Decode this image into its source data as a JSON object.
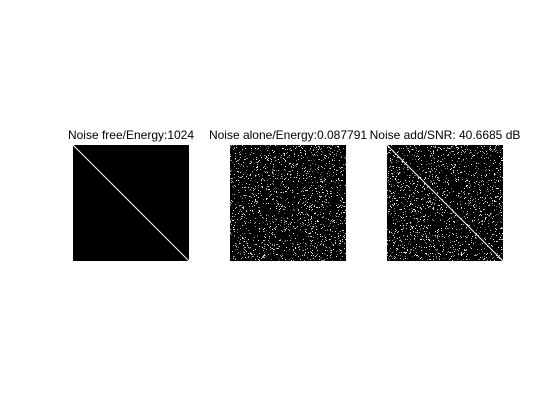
{
  "figure": {
    "background": "#ffffff",
    "panel_color": "#000000",
    "diagonal_color": "#ffffff",
    "noise_color": "#ffffff"
  },
  "chart_data": [
    {
      "type": "heatmap",
      "title": "Noise free/Energy:1024",
      "content": "identity (white diagonal on black)",
      "diagonal": true,
      "noise": false,
      "energy": 1024
    },
    {
      "type": "heatmap",
      "title": "Noise alone/Energy:0.087791",
      "content": "random speckle noise",
      "diagonal": false,
      "noise": true,
      "energy": 0.087791
    },
    {
      "type": "heatmap",
      "title": "Noise add/SNR: 40.6685 dB",
      "content": "identity plus random speckle noise",
      "diagonal": true,
      "noise": true,
      "snr_db": 40.6685
    }
  ]
}
